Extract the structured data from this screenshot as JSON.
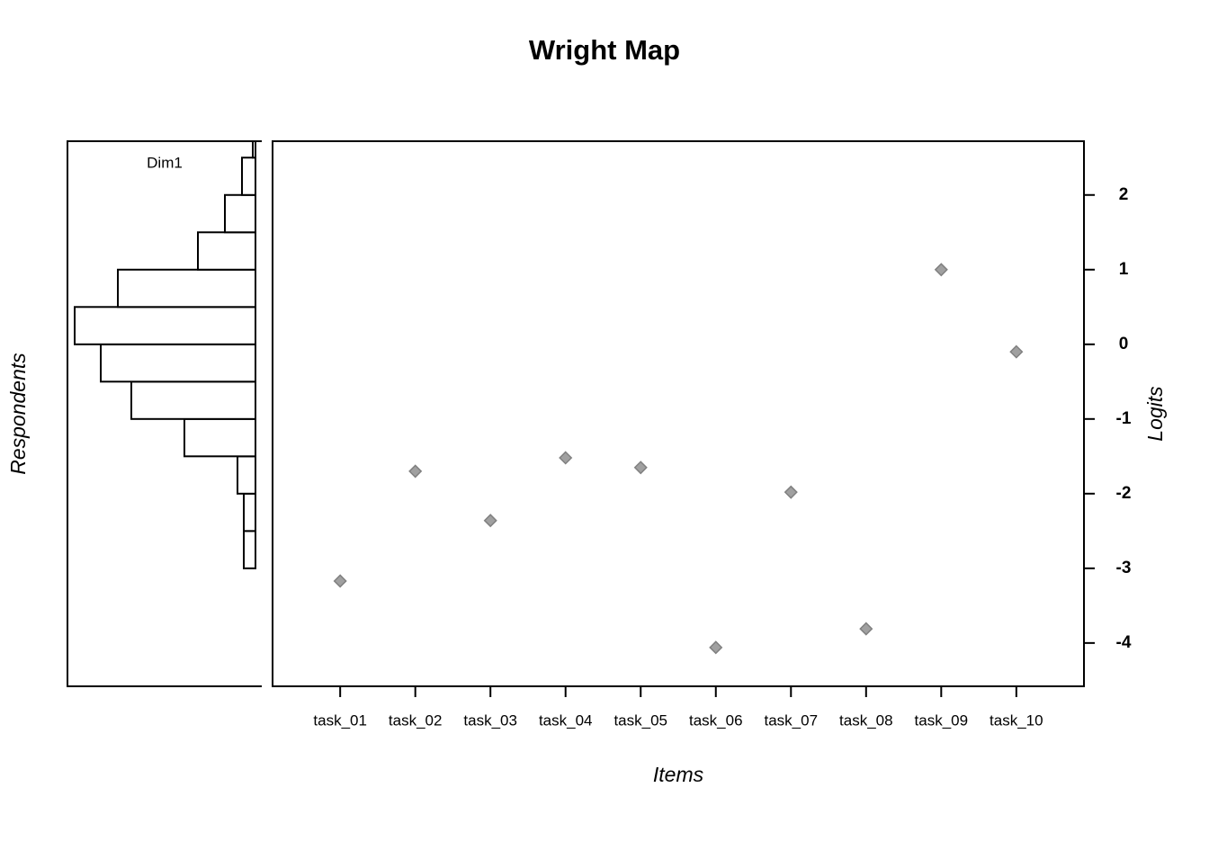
{
  "chart_data": [
    {
      "type": "histogram",
      "label": "Dim1",
      "y_label": "Respondents",
      "bins": [
        -3,
        -2.5,
        -2,
        -1.5,
        -1,
        -0.5,
        0,
        0.5,
        1,
        1.5,
        2,
        2.5,
        3
      ],
      "values": [
        13,
        13,
        20,
        79,
        138,
        172,
        201,
        153,
        64,
        34,
        15,
        3
      ],
      "ylim": [
        -4.58,
        2.72
      ]
    },
    {
      "type": "scatter",
      "title": "Wright Map",
      "x_label": "Items",
      "y_label": "Logits",
      "categories": [
        "task_01",
        "task_02",
        "task_03",
        "task_04",
        "task_05",
        "task_06",
        "task_07",
        "task_08",
        "task_09",
        "task_10"
      ],
      "values": [
        -3.17,
        -1.7,
        -2.36,
        -1.52,
        -1.65,
        -4.06,
        -1.98,
        -3.81,
        1.0,
        -0.1
      ],
      "color": "#a0a0a0",
      "ylim": [
        -4.58,
        2.72
      ],
      "yticks": [
        2,
        1,
        0,
        -1,
        -2,
        -3,
        -4
      ]
    }
  ]
}
